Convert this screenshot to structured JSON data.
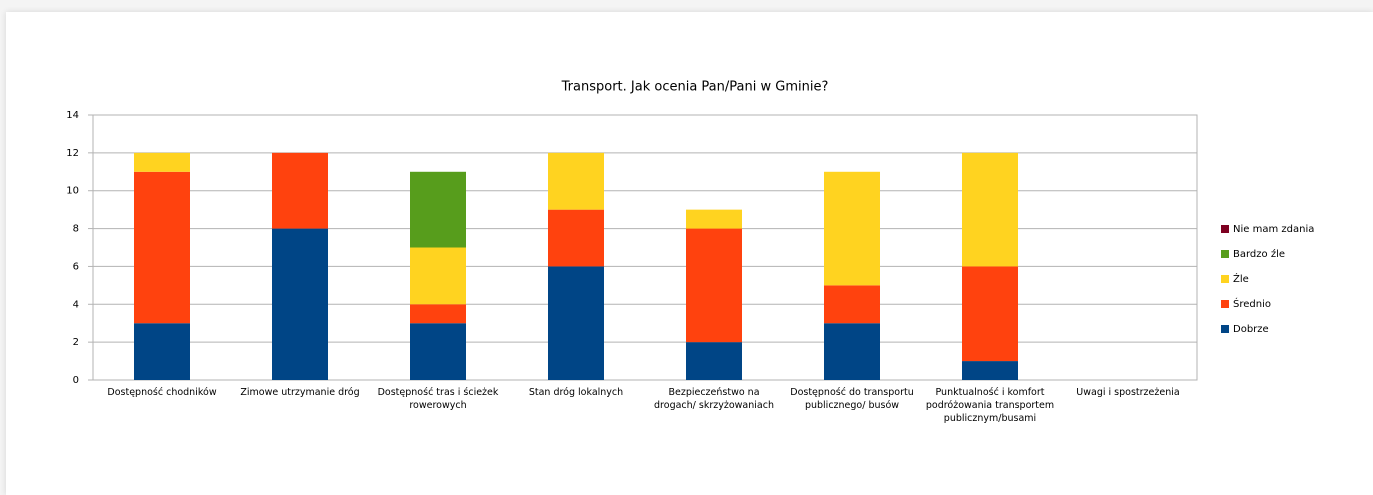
{
  "chart_data": {
    "type": "stacked_bar",
    "title": "Transport. Jak ocenia Pan/Pani w Gminie?",
    "categories": [
      "Dostępność chodników",
      "Zimowe utrzymanie dróg",
      "Dostępność tras i ścieżek rowerowych",
      "Stan dróg lokalnych",
      "Bezpieczeństwo na drogach/ skrzyżowaniach",
      "Dostępność do transportu publicznego/ busów",
      "Punktualność i komfort podróżowania transportem publicznym/busami",
      "Uwagi i spostrzeżenia"
    ],
    "series": [
      {
        "name": "Dobrze",
        "color": "#004586",
        "values": [
          3,
          8,
          3,
          6,
          2,
          3,
          1,
          0
        ]
      },
      {
        "name": "Średnio",
        "color": "#ff420e",
        "values": [
          8,
          4,
          1,
          3,
          6,
          2,
          5,
          0
        ]
      },
      {
        "name": "Źle",
        "color": "#ffd320",
        "values": [
          1,
          0,
          3,
          3,
          1,
          6,
          6,
          0
        ]
      },
      {
        "name": "Bardzo źle",
        "color": "#579d1c",
        "values": [
          0,
          0,
          4,
          0,
          0,
          0,
          0,
          0
        ]
      },
      {
        "name": "Nie mam zdania",
        "color": "#7e0021",
        "values": [
          0,
          0,
          0,
          0,
          0,
          0,
          0,
          0
        ]
      }
    ],
    "ylim": [
      0,
      14
    ],
    "yticks": [
      0,
      2,
      4,
      6,
      8,
      10,
      12,
      14
    ],
    "grid": true,
    "legend": "right"
  }
}
